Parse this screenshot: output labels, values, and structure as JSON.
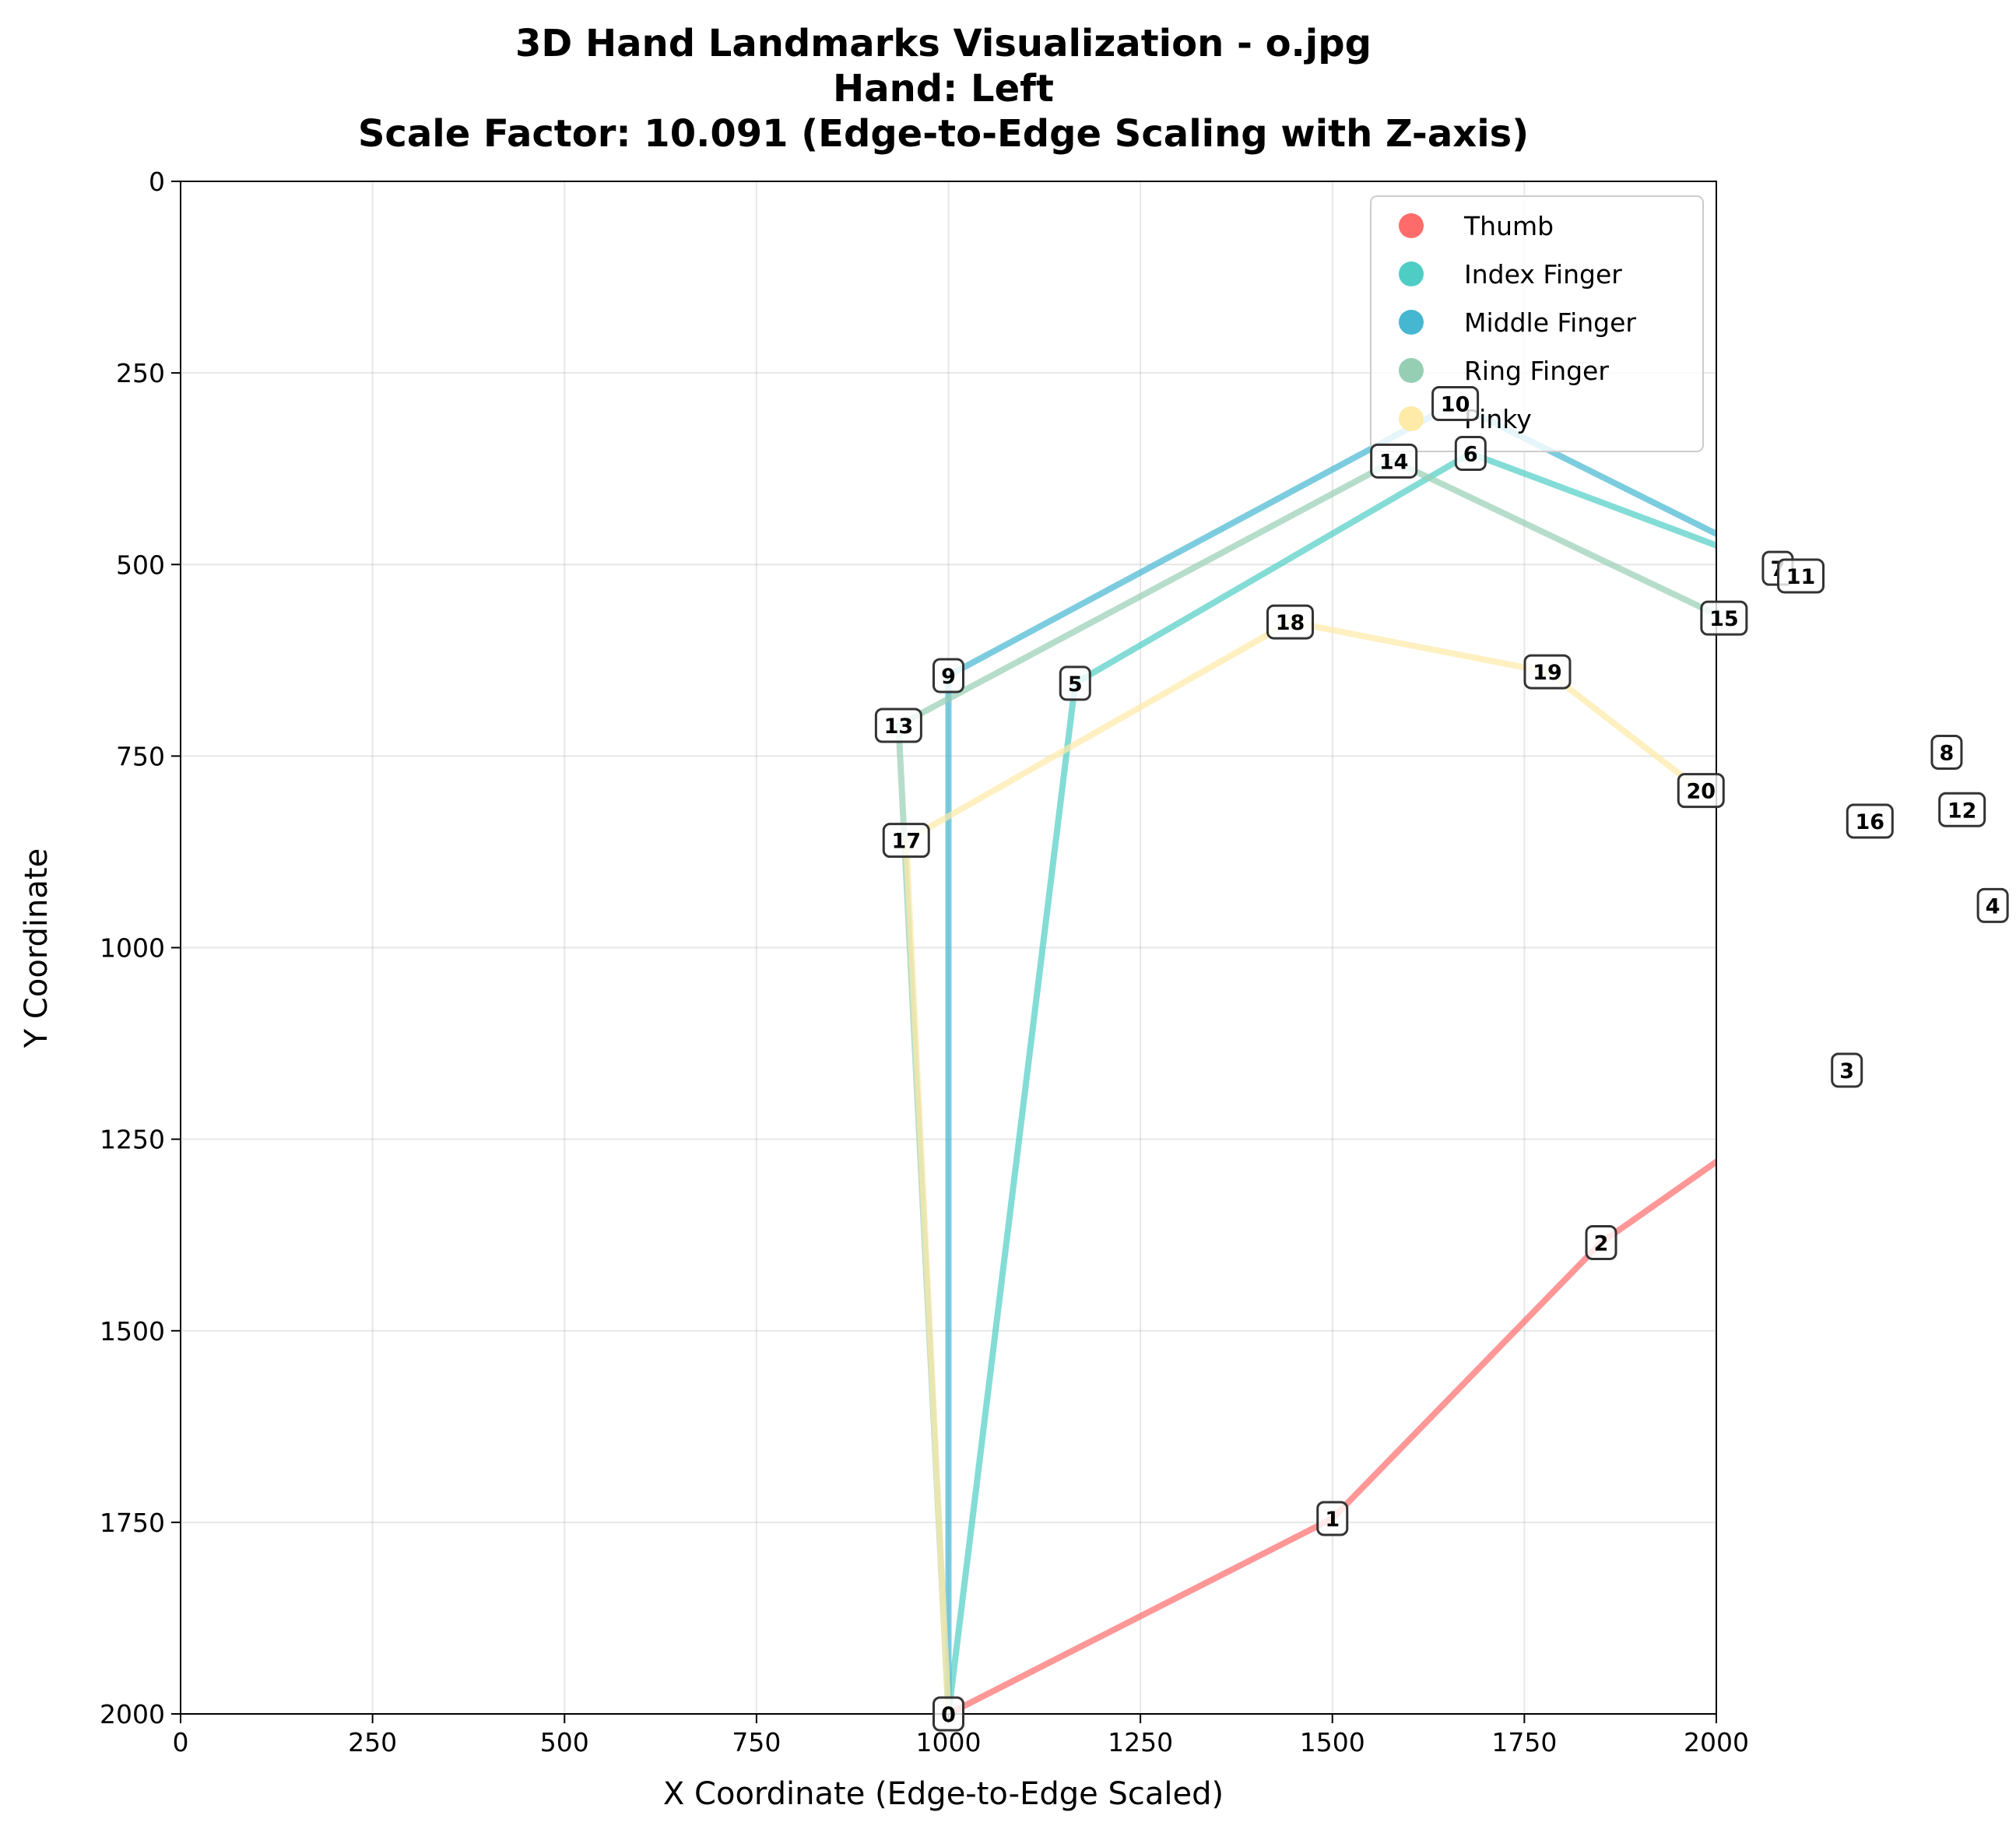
{
  "chart_data": {
    "type": "line",
    "title": [
      "3D Hand Landmarks Visualization - o.jpg",
      "Hand: Left",
      "Scale Factor: 10.091 (Edge-to-Edge Scaling with Z-axis)"
    ],
    "xlabel": "X Coordinate (Edge-to-Edge Scaled)",
    "ylabel": "Y Coordinate",
    "xlim": [
      0,
      2000
    ],
    "ylim": [
      2000,
      0
    ],
    "y_inverted": true,
    "grid": true,
    "xticks": [
      0,
      250,
      500,
      750,
      1000,
      1250,
      1500,
      1750,
      2000
    ],
    "yticks": [
      0,
      250,
      500,
      750,
      1000,
      1250,
      1500,
      1750,
      2000
    ],
    "legend_position": "top-right",
    "landmarks": [
      {
        "id": "0",
        "x": 1000,
        "y": 2000
      },
      {
        "id": "1",
        "x": 1500,
        "y": 1745
      },
      {
        "id": "2",
        "x": 1850,
        "y": 1385
      },
      {
        "id": "3",
        "x": 2170,
        "y": 1160
      },
      {
        "id": "4",
        "x": 2360,
        "y": 945
      },
      {
        "id": "5",
        "x": 1165,
        "y": 655
      },
      {
        "id": "6",
        "x": 1680,
        "y": 355
      },
      {
        "id": "7",
        "x": 2080,
        "y": 505
      },
      {
        "id": "8",
        "x": 2300,
        "y": 745
      },
      {
        "id": "9",
        "x": 1000,
        "y": 645
      },
      {
        "id": "10",
        "x": 1660,
        "y": 290
      },
      {
        "id": "11",
        "x": 2110,
        "y": 515
      },
      {
        "id": "12",
        "x": 2320,
        "y": 820
      },
      {
        "id": "13",
        "x": 935,
        "y": 710
      },
      {
        "id": "14",
        "x": 1580,
        "y": 365
      },
      {
        "id": "15",
        "x": 2010,
        "y": 570
      },
      {
        "id": "16",
        "x": 2200,
        "y": 835
      },
      {
        "id": "17",
        "x": 945,
        "y": 860
      },
      {
        "id": "18",
        "x": 1445,
        "y": 575
      },
      {
        "id": "19",
        "x": 1780,
        "y": 640
      },
      {
        "id": "20",
        "x": 1980,
        "y": 795
      }
    ],
    "series": [
      {
        "name": "Thumb",
        "color": "#ff6b6b",
        "points": [
          0,
          1,
          2,
          3,
          4
        ]
      },
      {
        "name": "Index Finger",
        "color": "#4ecdc4",
        "points": [
          0,
          5,
          6,
          7,
          8
        ]
      },
      {
        "name": "Middle Finger",
        "color": "#45b7d1",
        "points": [
          0,
          9,
          10,
          11,
          12
        ]
      },
      {
        "name": "Ring Finger",
        "color": "#96ceb4",
        "points": [
          0,
          13,
          14,
          15,
          16
        ]
      },
      {
        "name": "Pinky",
        "color": "#ffeaa7",
        "points": [
          0,
          17,
          18,
          19,
          20
        ]
      }
    ]
  }
}
